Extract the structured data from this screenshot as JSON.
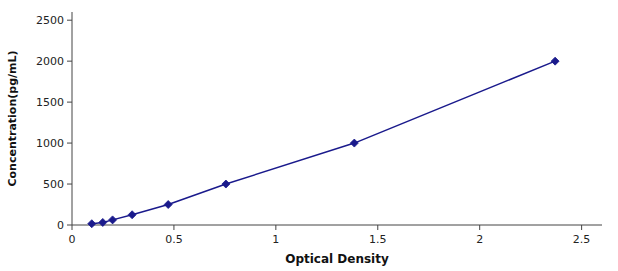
{
  "chart_data": {
    "type": "line",
    "xlabel": "Optical Density",
    "ylabel": "Concentration(pg/mL)",
    "x": [
      0.097,
      0.151,
      0.199,
      0.295,
      0.472,
      0.755,
      1.385,
      2.37
    ],
    "values": [
      15.6,
      31.2,
      62.5,
      125,
      250,
      500,
      1000,
      2000
    ],
    "color": "#1a1a8c",
    "marker": "diamond",
    "line_style": "solid",
    "xlim": [
      0,
      2.6
    ],
    "ylim": [
      0,
      2600
    ],
    "xticks": [
      0,
      0.5,
      1,
      1.5,
      2,
      2.5
    ],
    "yticks": [
      0,
      500,
      1000,
      1500,
      2000,
      2500
    ],
    "grid": false
  }
}
